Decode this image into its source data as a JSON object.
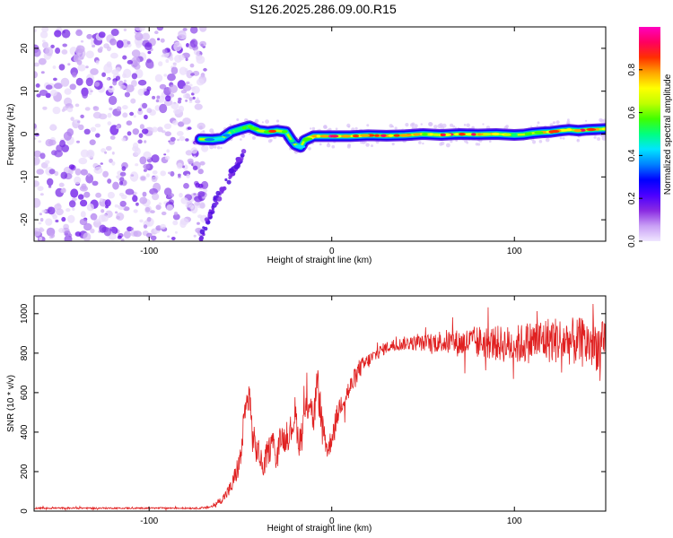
{
  "title": "S126.2025.286.09.00.R15",
  "chart_data": [
    {
      "type": "heatmap",
      "name": "spectrogram",
      "xlabel": "Height of straight line (km)",
      "ylabel": "Frequency (Hz)",
      "xlim": [
        -163,
        150
      ],
      "ylim": [
        -25,
        25
      ],
      "xticks": [
        -100,
        0,
        100
      ],
      "yticks": [
        -20,
        -10,
        0,
        10,
        20
      ],
      "colorbar": {
        "label": "Normalized spectral amplitude",
        "range": [
          0,
          1
        ],
        "ticks": [
          0.0,
          0.2,
          0.4,
          0.6,
          0.8
        ],
        "tick_labels": [
          "0.0",
          "0.2",
          "0.4",
          "0.6",
          "0.8"
        ],
        "colors": [
          "#f0e6ff",
          "#c9a0f5",
          "#8a2be2",
          "#4b00ff",
          "#0000ff",
          "#0080ff",
          "#00e5ff",
          "#00ff80",
          "#40ff00",
          "#c0ff00",
          "#ffff00",
          "#ffa500",
          "#ff3000",
          "#ff0060",
          "#ff00c0"
        ]
      },
      "noise_region_x": [
        -163,
        -72
      ],
      "signal_track": {
        "x": [
          -72,
          -65,
          -60,
          -55,
          -50,
          -45,
          -40,
          -35,
          -30,
          -25,
          -22,
          -20,
          -17,
          -15,
          -10,
          0,
          10,
          20,
          30,
          40,
          50,
          60,
          70,
          80,
          90,
          100,
          105,
          110,
          115,
          120,
          125,
          130,
          135,
          140,
          145,
          150
        ],
        "y": [
          -1.2,
          -1.3,
          -1.0,
          0.5,
          1.2,
          1.8,
          0.8,
          0.5,
          0.8,
          0.5,
          -1.5,
          -2.5,
          -3.0,
          -1.5,
          -0.5,
          -0.5,
          -0.5,
          -0.3,
          -0.4,
          -0.3,
          0.0,
          -0.2,
          0.0,
          -0.1,
          0.0,
          -0.2,
          -0.1,
          0.2,
          0.4,
          0.5,
          0.8,
          1.0,
          0.8,
          1.0,
          1.1,
          1.2
        ],
        "amplitude": [
          0.45,
          0.5,
          0.45,
          0.5,
          0.55,
          0.6,
          0.55,
          0.75,
          0.9,
          0.6,
          0.5,
          0.45,
          0.45,
          0.55,
          0.8,
          0.9,
          0.85,
          0.8,
          0.85,
          0.8,
          0.75,
          0.85,
          0.8,
          0.85,
          0.75,
          0.7,
          0.6,
          0.65,
          0.75,
          0.8,
          0.85,
          0.9,
          0.85,
          0.8,
          0.85,
          0.8
        ]
      },
      "secondary_track": {
        "x": [
          -72,
          -68,
          -64,
          -60,
          -56,
          -52,
          -48
        ],
        "y": [
          -25,
          -20,
          -16,
          -13,
          -10,
          -7,
          -4
        ]
      }
    },
    {
      "type": "line",
      "name": "snr",
      "xlabel": "Height of straight line (km)",
      "ylabel": "SNR (10 * v/v)",
      "xlim": [
        -163,
        150
      ],
      "ylim": [
        0,
        1090
      ],
      "xticks": [
        -100,
        0,
        100
      ],
      "yticks": [
        0,
        200,
        400,
        600,
        800,
        1000
      ],
      "color": "#e02020",
      "series": [
        {
          "name": "SNR",
          "x": [
            -163,
            -140,
            -120,
            -100,
            -80,
            -70,
            -65,
            -60,
            -55,
            -50,
            -48,
            -46,
            -45,
            -44,
            -42,
            -40,
            -38,
            -35,
            -32,
            -30,
            -28,
            -25,
            -22,
            -20,
            -18,
            -15,
            -12,
            -10,
            -8,
            -5,
            -2,
            0,
            5,
            10,
            15,
            20,
            25,
            30,
            35,
            40,
            50,
            60,
            70,
            80,
            90,
            100,
            110,
            120,
            130,
            140,
            145,
            150
          ],
          "values": [
            15,
            15,
            15,
            15,
            15,
            15,
            25,
            60,
            120,
            260,
            450,
            560,
            620,
            420,
            320,
            300,
            220,
            300,
            350,
            260,
            380,
            360,
            420,
            500,
            340,
            480,
            580,
            450,
            650,
            430,
            300,
            380,
            550,
            620,
            720,
            760,
            800,
            830,
            840,
            850,
            850,
            860,
            850,
            860,
            850,
            840,
            860,
            870,
            860,
            850,
            840,
            830
          ],
          "noise_amplitude": [
            4,
            4,
            4,
            4,
            4,
            5,
            8,
            20,
            40,
            70,
            90,
            100,
            110,
            100,
            80,
            70,
            60,
            70,
            70,
            60,
            70,
            70,
            80,
            90,
            70,
            80,
            100,
            80,
            110,
            80,
            60,
            60,
            60,
            60,
            50,
            40,
            35,
            30,
            30,
            35,
            40,
            60,
            70,
            80,
            90,
            100,
            110,
            120,
            120,
            130,
            130,
            130
          ]
        }
      ]
    }
  ]
}
